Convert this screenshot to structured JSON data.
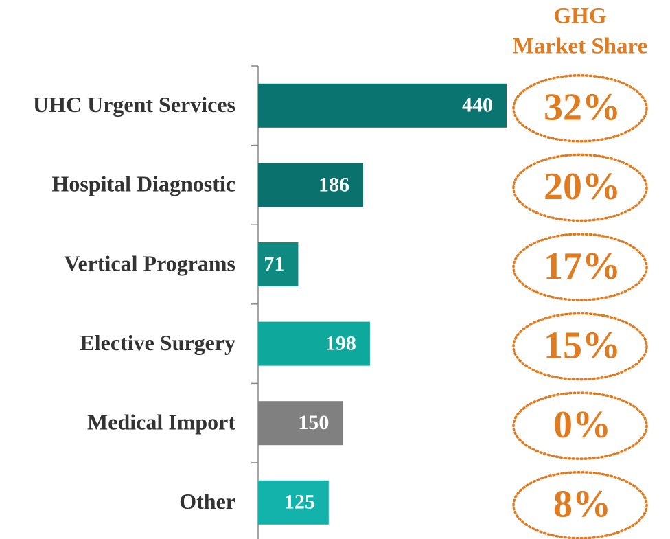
{
  "chart_data": {
    "type": "bar",
    "orientation": "horizontal",
    "categories": [
      "UHC Urgent Services",
      "Hospital Diagnostic",
      "Vertical Programs",
      "Elective Surgery",
      "Medical Import",
      "Other"
    ],
    "values": [
      440,
      186,
      71,
      198,
      150,
      125
    ],
    "colors": [
      "#0a7570",
      "#0b716c",
      "#0f8a80",
      "#0ea89c",
      "#808080",
      "#13b3ab"
    ],
    "xlim": [
      0,
      440
    ],
    "market_share_title": [
      "GHG",
      "Market Share"
    ],
    "market_share": {
      "values": [
        32,
        20,
        17,
        15,
        0,
        8
      ],
      "value_labels": [
        "32%",
        "20%",
        "17%",
        "15%",
        "0%",
        "8%"
      ],
      "color": "#e07b1f"
    }
  }
}
